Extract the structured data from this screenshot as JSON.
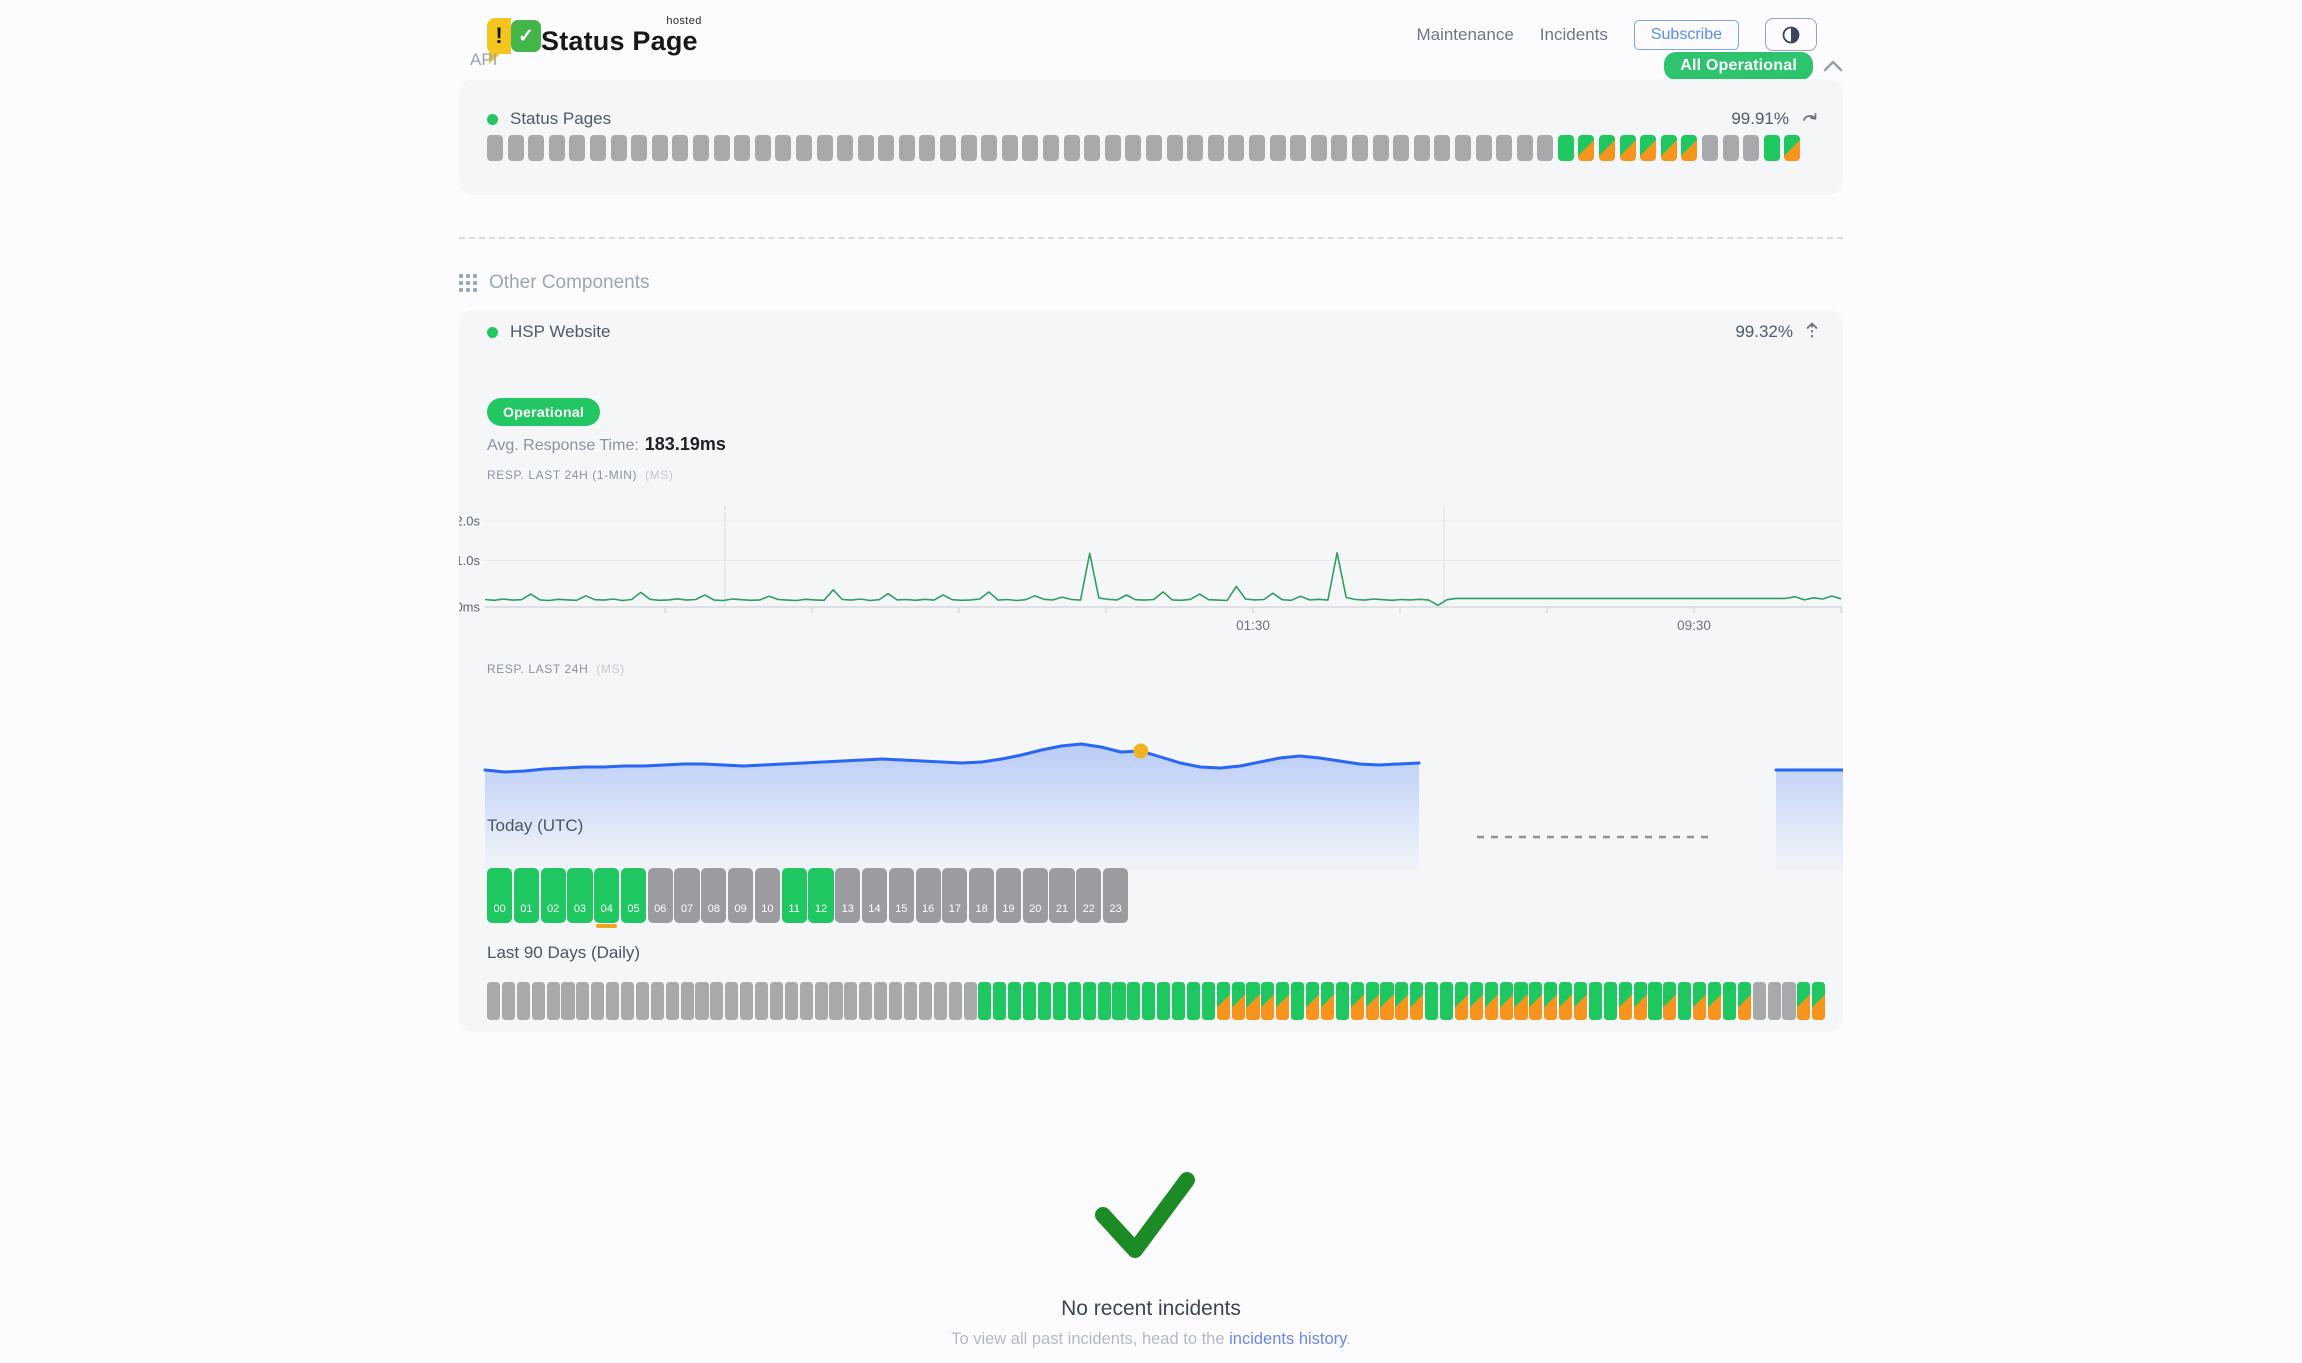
{
  "header": {
    "brand": {
      "title": "Status Page",
      "superscript": "hosted",
      "mark_exclamation": "!",
      "mark_check": "✓"
    },
    "nav": [
      {
        "label": "Maintenance"
      },
      {
        "label": "Incidents"
      }
    ],
    "subscribe_label": "Subscribe",
    "theme_icon": "half-filled-circle",
    "status_badge": "All Operational"
  },
  "api_section": {
    "label": "API",
    "component": {
      "name": "Status Pages",
      "uptime": "99.91%"
    },
    "bar": [
      "g",
      "g",
      "g",
      "g",
      "g",
      "g",
      "g",
      "g",
      "g",
      "g",
      "g",
      "g",
      "g",
      "g",
      "g",
      "g",
      "g",
      "g",
      "g",
      "g",
      "g",
      "g",
      "g",
      "g",
      "g",
      "g",
      "g",
      "g",
      "g",
      "g",
      "g",
      "g",
      "g",
      "g",
      "g",
      "g",
      "g",
      "g",
      "g",
      "g",
      "g",
      "g",
      "g",
      "g",
      "g",
      "g",
      "g",
      "g",
      "g",
      "g",
      "g",
      "g",
      "u",
      "m",
      "m",
      "m",
      "m",
      "m",
      "m",
      "g",
      "g",
      "g",
      "u",
      "m"
    ]
  },
  "other_components": {
    "title": "Other Components",
    "component": {
      "name": "HSP Website",
      "uptime": "99.32%"
    },
    "status_label": "Operational",
    "avg_label": "Avg. Response Time:",
    "avg_value": "183.19ms",
    "chart_data": [
      {
        "type": "line",
        "title": "RESP. LAST 24H (1-MIN)",
        "unit": "(MS)",
        "ylabel_ticks": [
          "2.0s",
          "1.0s",
          "0ms"
        ],
        "xlabel_ticks": [
          "01:30",
          "09:30"
        ],
        "ylim_ms": [
          0,
          2300
        ],
        "line_color": "#2e9e63",
        "values": [
          175,
          155,
          185,
          160,
          170,
          300,
          165,
          150,
          180,
          165,
          155,
          260,
          170,
          160,
          185,
          150,
          175,
          340,
          180,
          155,
          165,
          190,
          160,
          175,
          280,
          160,
          150,
          185,
          170,
          155,
          165,
          250,
          175,
          160,
          150,
          180,
          165,
          155,
          400,
          175,
          160,
          185,
          150,
          170,
          310,
          165,
          175,
          155,
          180,
          160,
          280,
          170,
          155,
          165,
          185,
          350,
          160,
          175,
          150,
          170,
          260,
          180,
          165,
          230,
          175,
          160,
          1250,
          210,
          180,
          165,
          280,
          170,
          160,
          175,
          350,
          165,
          155,
          180,
          300,
          170,
          160,
          150,
          480,
          185,
          165,
          175,
          320,
          170,
          155,
          250,
          165,
          180,
          160,
          1260,
          220,
          175,
          160,
          185,
          170,
          155,
          175,
          165,
          180,
          160,
          40,
          170,
          200,
          200,
          200,
          200,
          200,
          200,
          200,
          200,
          200,
          200,
          200,
          200,
          200,
          200,
          200,
          200,
          200,
          200,
          200,
          200,
          200,
          200,
          200,
          200,
          200,
          200,
          200,
          200,
          200,
          200,
          200,
          200,
          200,
          200,
          200,
          200,
          200,
          240,
          165,
          215,
          185,
          255,
          190
        ]
      },
      {
        "type": "area",
        "title": "RESP. LAST 24H",
        "unit": "(MS)",
        "line_color": "#2966f5",
        "marker_color": "#f2b220",
        "values": [
          170,
          168,
          169,
          171,
          172,
          173,
          173,
          174,
          174,
          175,
          176,
          176,
          175,
          174,
          175,
          176,
          177,
          178,
          179,
          180,
          181,
          180,
          179,
          178,
          177,
          178,
          181,
          185,
          190,
          194,
          196,
          193,
          188,
          189,
          183,
          177,
          173,
          172,
          174,
          178,
          182,
          184,
          182,
          179,
          176,
          175,
          176,
          177
        ],
        "marker_index": 33,
        "gap_after": true,
        "right_segment_value": 170
      }
    ],
    "today": {
      "title": "Today (UTC)",
      "marker_index": 4,
      "hours": [
        {
          "label": "00",
          "state": "u"
        },
        {
          "label": "01",
          "state": "u"
        },
        {
          "label": "02",
          "state": "u"
        },
        {
          "label": "03",
          "state": "u"
        },
        {
          "label": "04",
          "state": "u"
        },
        {
          "label": "05",
          "state": "u"
        },
        {
          "label": "06",
          "state": "g"
        },
        {
          "label": "07",
          "state": "g"
        },
        {
          "label": "08",
          "state": "g"
        },
        {
          "label": "09",
          "state": "g"
        },
        {
          "label": "10",
          "state": "g"
        },
        {
          "label": "11",
          "state": "u"
        },
        {
          "label": "12",
          "state": "u"
        },
        {
          "label": "13",
          "state": "g"
        },
        {
          "label": "14",
          "state": "g"
        },
        {
          "label": "15",
          "state": "g"
        },
        {
          "label": "16",
          "state": "g"
        },
        {
          "label": "17",
          "state": "g"
        },
        {
          "label": "18",
          "state": "g"
        },
        {
          "label": "19",
          "state": "g"
        },
        {
          "label": "20",
          "state": "g"
        },
        {
          "label": "21",
          "state": "g"
        },
        {
          "label": "22",
          "state": "g"
        },
        {
          "label": "23",
          "state": "g"
        }
      ]
    },
    "last90": {
      "title": "Last 90 Days (Daily)",
      "days": [
        "g",
        "g",
        "g",
        "g",
        "g",
        "g",
        "g",
        "g",
        "g",
        "g",
        "g",
        "g",
        "g",
        "g",
        "g",
        "g",
        "g",
        "g",
        "g",
        "g",
        "g",
        "g",
        "g",
        "g",
        "g",
        "g",
        "g",
        "g",
        "g",
        "g",
        "g",
        "g",
        "g",
        "u",
        "u",
        "u",
        "u",
        "u",
        "u",
        "u",
        "u",
        "u",
        "u",
        "u",
        "u",
        "u",
        "u",
        "u",
        "u",
        "m",
        "m",
        "m",
        "m",
        "m",
        "u",
        "m",
        "m",
        "u",
        "m",
        "m",
        "m",
        "m",
        "m",
        "u",
        "u",
        "m",
        "m",
        "m",
        "m",
        "m",
        "m",
        "m",
        "m",
        "m",
        "u",
        "u",
        "m",
        "m",
        "u",
        "m",
        "u",
        "m",
        "m",
        "u",
        "m",
        "g",
        "g",
        "g",
        "m",
        "m"
      ]
    }
  },
  "incidents": {
    "title": "No recent incidents",
    "subtitle_prefix": "To view all past incidents, head to the ",
    "link_text": "incidents history",
    "subtitle_suffix": "."
  },
  "colors": {
    "operational_green": "#22c763",
    "square_green": "#1ec75f",
    "square_orange": "#f7941e",
    "square_gray": "#a8a9ab",
    "badge_green": "#2ec46d",
    "subscribe_blue": "#5b8def",
    "link_blue": "#6d87e8",
    "chart_line_green": "#2e9e63",
    "chart_line_blue": "#2966f5",
    "marker_orange": "#f2b220",
    "big_check_green": "#1d8b25"
  }
}
